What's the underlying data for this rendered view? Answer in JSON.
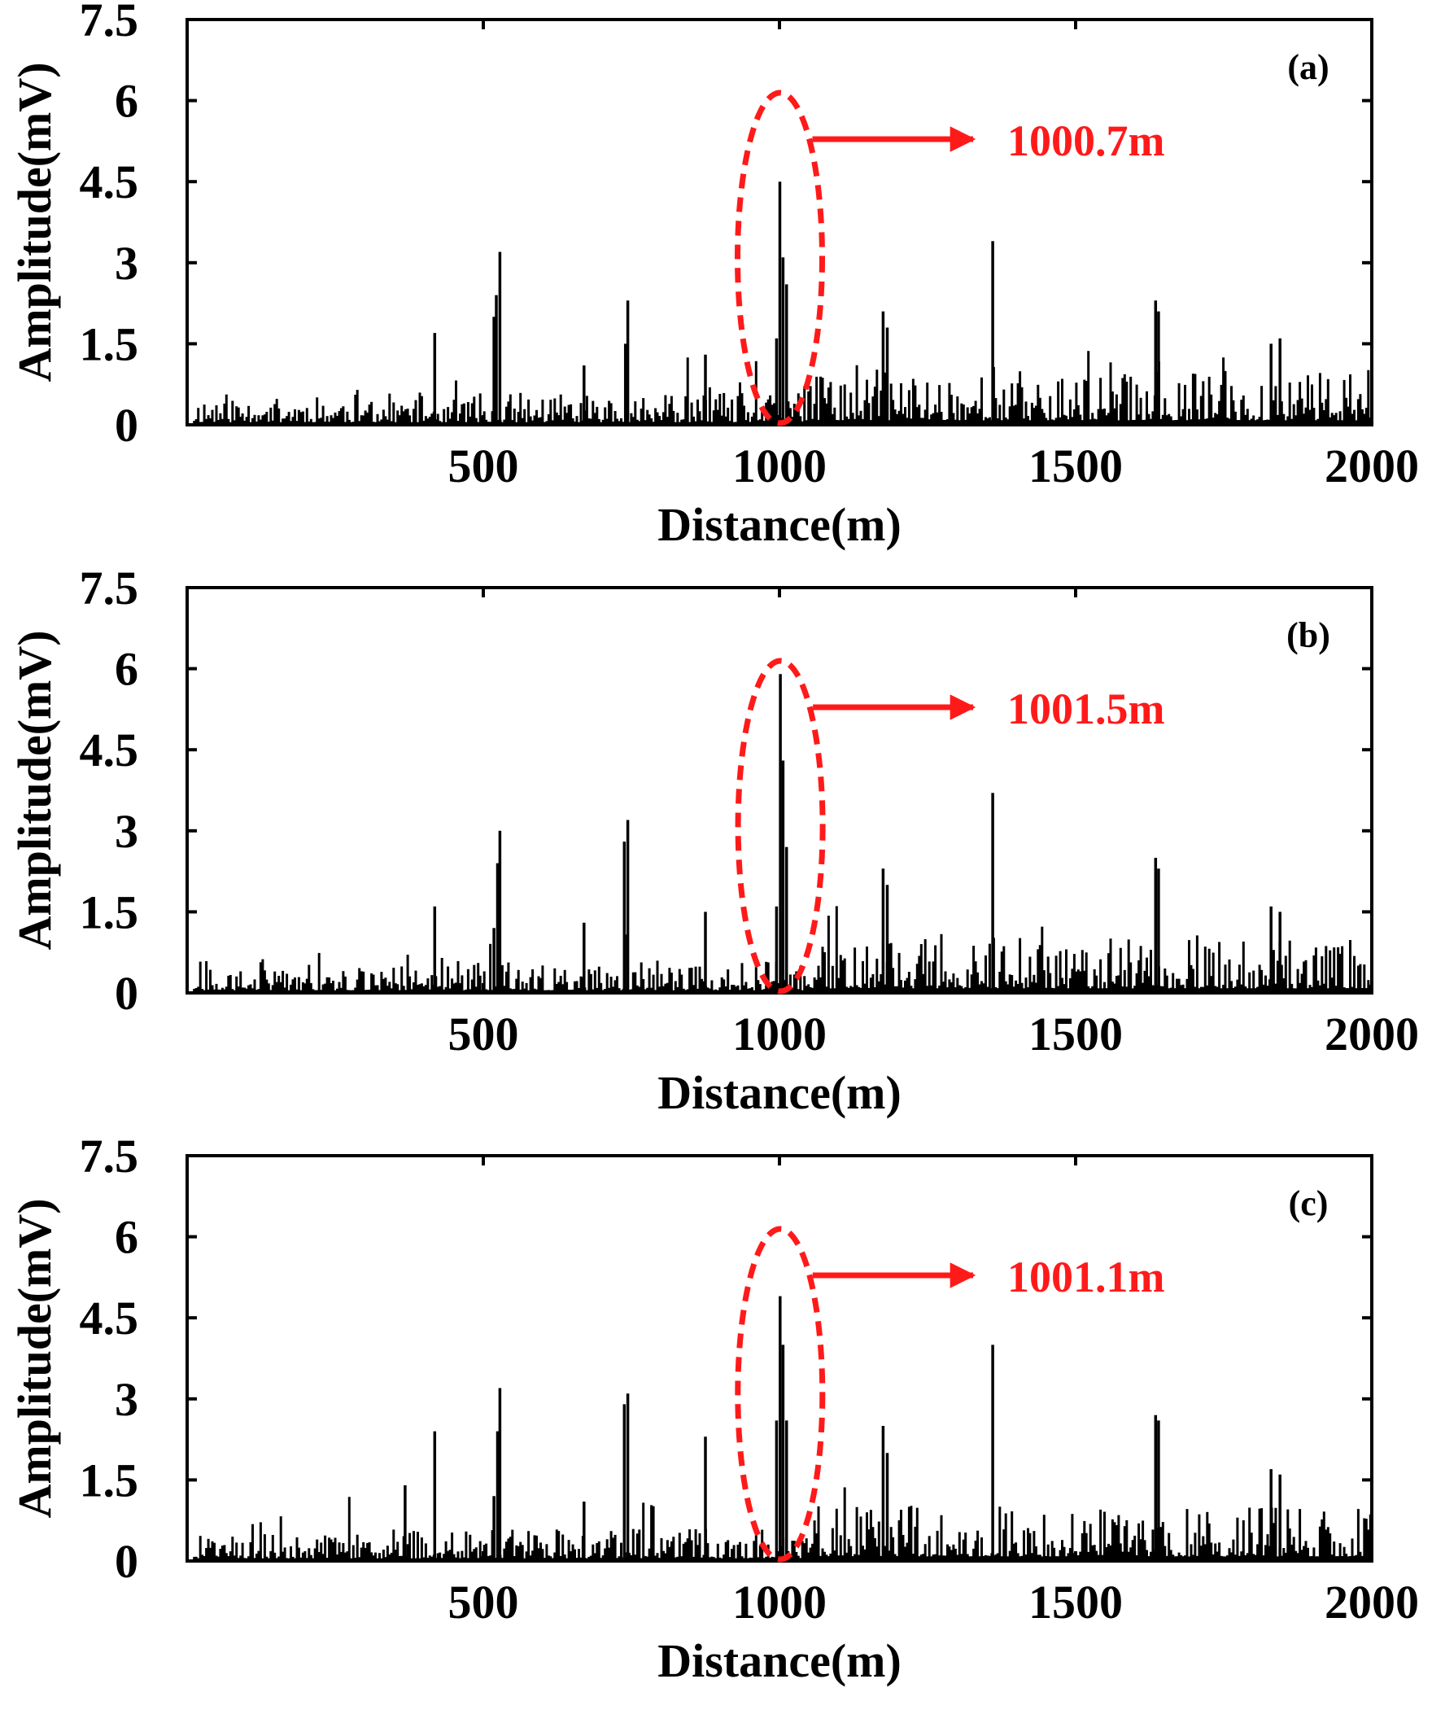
{
  "chart_data": [
    {
      "type": "bar",
      "panel_label": "(a)",
      "title": "",
      "xlabel": "Distance(m)",
      "ylabel": "Amplitude(mV)",
      "xlim": [
        0,
        2000
      ],
      "ylim": [
        0,
        7.5
      ],
      "xticks": [
        "500",
        "1000",
        "1500",
        "2000"
      ],
      "yticks": [
        "0",
        "1.5",
        "3",
        "4.5",
        "6",
        "7.5"
      ],
      "noise_seed": 11,
      "annotation": {
        "text": "1000.7m",
        "x": 1000.7,
        "color": "#ff1a1a"
      },
      "peaks": [
        {
          "x": 418,
          "y": 1.7
        },
        {
          "x": 518,
          "y": 2.0
        },
        {
          "x": 522,
          "y": 2.4
        },
        {
          "x": 528,
          "y": 3.2
        },
        {
          "x": 670,
          "y": 1.1
        },
        {
          "x": 740,
          "y": 1.5
        },
        {
          "x": 744,
          "y": 2.3
        },
        {
          "x": 875,
          "y": 1.3
        },
        {
          "x": 1000.7,
          "y": 4.5
        },
        {
          "x": 1006,
          "y": 3.1
        },
        {
          "x": 1012,
          "y": 2.6
        },
        {
          "x": 995,
          "y": 1.6
        },
        {
          "x": 1175,
          "y": 2.1
        },
        {
          "x": 1182,
          "y": 1.8
        },
        {
          "x": 1360,
          "y": 3.4
        },
        {
          "x": 1635,
          "y": 2.3
        },
        {
          "x": 1640,
          "y": 2.1
        },
        {
          "x": 1830,
          "y": 1.5
        },
        {
          "x": 1845,
          "y": 1.6
        }
      ]
    },
    {
      "type": "bar",
      "panel_label": "(b)",
      "title": "",
      "xlabel": "Distance(m)",
      "ylabel": "Amplitude(mV)",
      "xlim": [
        0,
        2000
      ],
      "ylim": [
        0,
        7.5
      ],
      "xticks": [
        "500",
        "1000",
        "1500",
        "2000"
      ],
      "yticks": [
        "0",
        "1.5",
        "3",
        "4.5",
        "6",
        "7.5"
      ],
      "noise_seed": 27,
      "annotation": {
        "text": "1001.5m",
        "x": 1001.5,
        "color": "#ff1a1a"
      },
      "peaks": [
        {
          "x": 418,
          "y": 1.6
        },
        {
          "x": 518,
          "y": 1.2
        },
        {
          "x": 524,
          "y": 2.4
        },
        {
          "x": 528,
          "y": 3.0
        },
        {
          "x": 670,
          "y": 1.3
        },
        {
          "x": 738,
          "y": 2.8
        },
        {
          "x": 744,
          "y": 3.2
        },
        {
          "x": 875,
          "y": 1.5
        },
        {
          "x": 1001.5,
          "y": 5.9
        },
        {
          "x": 1006,
          "y": 4.3
        },
        {
          "x": 1012,
          "y": 2.7
        },
        {
          "x": 995,
          "y": 1.6
        },
        {
          "x": 1175,
          "y": 2.3
        },
        {
          "x": 1182,
          "y": 2.0
        },
        {
          "x": 1360,
          "y": 3.7
        },
        {
          "x": 1635,
          "y": 2.5
        },
        {
          "x": 1640,
          "y": 2.3
        },
        {
          "x": 1830,
          "y": 1.6
        },
        {
          "x": 1845,
          "y": 1.5
        }
      ]
    },
    {
      "type": "bar",
      "panel_label": "(c)",
      "title": "",
      "xlabel": "Distance(m)",
      "ylabel": "Amplitude(mV)",
      "xlim": [
        0,
        2000
      ],
      "ylim": [
        0,
        7.5
      ],
      "xticks": [
        "500",
        "1000",
        "1500",
        "2000"
      ],
      "yticks": [
        "0",
        "1.5",
        "3",
        "4.5",
        "6",
        "7.5"
      ],
      "noise_seed": 43,
      "annotation": {
        "text": "1001.1m",
        "x": 1001.1,
        "color": "#ff1a1a"
      },
      "peaks": [
        {
          "x": 368,
          "y": 1.4
        },
        {
          "x": 418,
          "y": 2.4
        },
        {
          "x": 518,
          "y": 1.2
        },
        {
          "x": 524,
          "y": 2.4
        },
        {
          "x": 528,
          "y": 3.2
        },
        {
          "x": 670,
          "y": 1.1
        },
        {
          "x": 738,
          "y": 2.9
        },
        {
          "x": 744,
          "y": 3.1
        },
        {
          "x": 875,
          "y": 2.3
        },
        {
          "x": 1001.1,
          "y": 4.9
        },
        {
          "x": 1006,
          "y": 4.0
        },
        {
          "x": 1012,
          "y": 2.6
        },
        {
          "x": 995,
          "y": 2.6
        },
        {
          "x": 1175,
          "y": 2.5
        },
        {
          "x": 1182,
          "y": 2.0
        },
        {
          "x": 1360,
          "y": 4.0
        },
        {
          "x": 1635,
          "y": 2.7
        },
        {
          "x": 1640,
          "y": 2.6
        },
        {
          "x": 1830,
          "y": 1.7
        },
        {
          "x": 1845,
          "y": 1.6
        }
      ]
    }
  ]
}
